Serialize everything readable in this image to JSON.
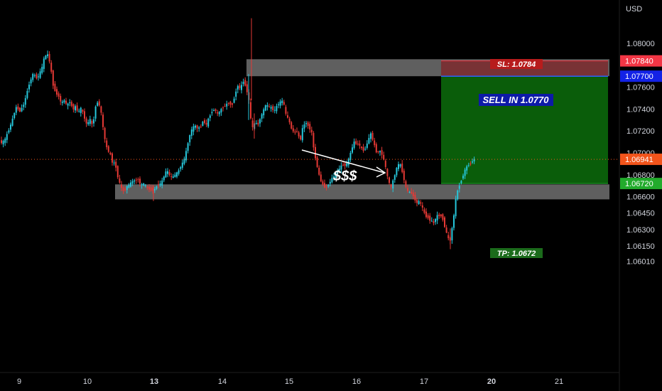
{
  "chart_data": {
    "type": "candlestick",
    "currency_label": "USD",
    "ylim": [
      1.0595,
      1.082
    ],
    "y_ticks": [
      1.08,
      1.076,
      1.074,
      1.072,
      1.07,
      1.068,
      1.066,
      1.0645,
      1.063,
      1.0615,
      1.0601
    ],
    "y_tick_labels": [
      "1.08000",
      "1.07600",
      "1.07400",
      "1.07200",
      "1.07000",
      "1.06800",
      "1.06600",
      "1.06450",
      "1.06300",
      "1.06150",
      "1.06010"
    ],
    "x_labels": [
      {
        "label": "9",
        "bold": false
      },
      {
        "label": "10",
        "bold": false
      },
      {
        "label": "13",
        "bold": true
      },
      {
        "label": "14",
        "bold": false
      },
      {
        "label": "15",
        "bold": false
      },
      {
        "label": "16",
        "bold": false
      },
      {
        "label": "17",
        "bold": false
      },
      {
        "label": "20",
        "bold": true
      },
      {
        "label": "21",
        "bold": false
      }
    ],
    "price_path": [
      [
        0,
        1.0712
      ],
      [
        3,
        1.0709
      ],
      [
        8,
        1.0711
      ],
      [
        12,
        1.0718
      ],
      [
        18,
        1.0728
      ],
      [
        24,
        1.0742
      ],
      [
        30,
        1.0738
      ],
      [
        36,
        1.0746
      ],
      [
        42,
        1.0762
      ],
      [
        48,
        1.0772
      ],
      [
        54,
        1.0768
      ],
      [
        60,
        1.0776
      ],
      [
        64,
        1.0787
      ],
      [
        68,
        1.0791
      ],
      [
        72,
        1.0782
      ],
      [
        76,
        1.0763
      ],
      [
        80,
        1.0755
      ],
      [
        84,
        1.0752
      ],
      [
        88,
        1.0745
      ],
      [
        92,
        1.0748
      ],
      [
        96,
        1.0743
      ],
      [
        100,
        1.0747
      ],
      [
        104,
        1.074
      ],
      [
        108,
        1.0742
      ],
      [
        112,
        1.0737
      ],
      [
        116,
        1.0741
      ],
      [
        120,
        1.0733
      ],
      [
        124,
        1.0725
      ],
      [
        128,
        1.0731
      ],
      [
        132,
        1.0724
      ],
      [
        136,
        1.0742
      ],
      [
        140,
        1.0748
      ],
      [
        144,
        1.0736
      ],
      [
        148,
        1.0716
      ],
      [
        152,
        1.0704
      ],
      [
        156,
        1.07
      ],
      [
        160,
        1.0691
      ],
      [
        164,
        1.069
      ],
      [
        168,
        1.0676
      ],
      [
        172,
        1.0668
      ],
      [
        176,
        1.0665
      ],
      [
        180,
        1.0669
      ],
      [
        184,
        1.0671
      ],
      [
        188,
        1.0674
      ],
      [
        192,
        1.0675
      ],
      [
        196,
        1.0676
      ],
      [
        200,
        1.067
      ],
      [
        204,
        1.0672
      ],
      [
        208,
        1.0668
      ],
      [
        212,
        1.0667
      ],
      [
        216,
        1.0666
      ],
      [
        220,
        1.0667
      ],
      [
        224,
        1.0672
      ],
      [
        228,
        1.0671
      ],
      [
        232,
        1.0678
      ],
      [
        236,
        1.0684
      ],
      [
        240,
        1.068
      ],
      [
        244,
        1.0677
      ],
      [
        248,
        1.068
      ],
      [
        252,
        1.0682
      ],
      [
        256,
        1.0688
      ],
      [
        260,
        1.0692
      ],
      [
        264,
        1.0702
      ],
      [
        268,
        1.0715
      ],
      [
        272,
        1.0722
      ],
      [
        276,
        1.0725
      ],
      [
        280,
        1.0722
      ],
      [
        284,
        1.0724
      ],
      [
        288,
        1.073
      ],
      [
        292,
        1.0725
      ],
      [
        296,
        1.0733
      ],
      [
        300,
        1.0738
      ],
      [
        304,
        1.074
      ],
      [
        308,
        1.0735
      ],
      [
        312,
        1.0739
      ],
      [
        316,
        1.0742
      ],
      [
        320,
        1.0744
      ],
      [
        324,
        1.0746
      ],
      [
        328,
        1.0743
      ],
      [
        332,
        1.0752
      ],
      [
        336,
        1.0762
      ],
      [
        340,
        1.0758
      ],
      [
        344,
        1.0766
      ],
      [
        348,
        1.076
      ],
      [
        352,
        1.0748
      ],
      [
        355,
        1.0728
      ],
      [
        358,
        1.0721
      ],
      [
        361,
        1.073
      ],
      [
        364,
        1.0724
      ],
      [
        368,
        1.0732
      ],
      [
        372,
        1.0738
      ],
      [
        376,
        1.0744
      ],
      [
        380,
        1.0742
      ],
      [
        384,
        1.0741
      ],
      [
        388,
        1.0738
      ],
      [
        392,
        1.0744
      ],
      [
        396,
        1.0746
      ],
      [
        400,
        1.0748
      ],
      [
        404,
        1.0735
      ],
      [
        408,
        1.073
      ],
      [
        412,
        1.0722
      ],
      [
        416,
        1.0718
      ],
      [
        420,
        1.072
      ],
      [
        424,
        1.071
      ],
      [
        428,
        1.0724
      ],
      [
        432,
        1.0728
      ],
      [
        436,
        1.0724
      ],
      [
        440,
        1.072
      ],
      [
        444,
        1.07
      ],
      [
        448,
        1.0688
      ],
      [
        452,
        1.0676
      ],
      [
        456,
        1.0671
      ],
      [
        460,
        1.0668
      ],
      [
        464,
        1.0671
      ],
      [
        468,
        1.0676
      ],
      [
        472,
        1.0679
      ],
      [
        476,
        1.0683
      ],
      [
        480,
        1.0686
      ],
      [
        484,
        1.069
      ],
      [
        488,
        1.0688
      ],
      [
        492,
        1.0693
      ],
      [
        496,
        1.0702
      ],
      [
        500,
        1.071
      ],
      [
        504,
        1.0708
      ],
      [
        508,
        1.0707
      ],
      [
        512,
        1.0702
      ],
      [
        516,
        1.0704
      ],
      [
        520,
        1.0712
      ],
      [
        524,
        1.0718
      ],
      [
        528,
        1.0708
      ],
      [
        532,
        1.07
      ],
      [
        536,
        1.0702
      ],
      [
        540,
        1.0698
      ],
      [
        544,
        1.0688
      ],
      [
        548,
        1.0675
      ],
      [
        552,
        1.0668
      ],
      [
        556,
        1.0677
      ],
      [
        560,
        1.0686
      ],
      [
        564,
        1.0691
      ],
      [
        568,
        1.0683
      ],
      [
        572,
        1.067
      ],
      [
        576,
        1.0664
      ],
      [
        580,
        1.0664
      ],
      [
        584,
        1.066
      ],
      [
        588,
        1.0654
      ],
      [
        592,
        1.0656
      ],
      [
        596,
        1.065
      ],
      [
        600,
        1.0643
      ],
      [
        604,
        1.0641
      ],
      [
        608,
        1.0638
      ],
      [
        612,
        1.0636
      ],
      [
        616,
        1.0642
      ],
      [
        620,
        1.0643
      ],
      [
        624,
        1.0642
      ],
      [
        628,
        1.0632
      ],
      [
        632,
        1.0622
      ],
      [
        635,
        1.0619
      ],
      [
        638,
        1.0631
      ],
      [
        641,
        1.0645
      ],
      [
        644,
        1.0662
      ],
      [
        648,
        1.067
      ],
      [
        652,
        1.0677
      ],
      [
        656,
        1.0684
      ],
      [
        660,
        1.0689
      ],
      [
        664,
        1.069
      ],
      [
        668,
        1.06941
      ]
    ],
    "last_price": 1.06941,
    "zones": [
      {
        "name": "supply-zone",
        "top": 1.07855,
        "bottom": 1.077,
        "from_x": 347,
        "to_x": 858
      },
      {
        "name": "demand-zone",
        "top": 1.06712,
        "bottom": 1.06575,
        "from_x": 162,
        "to_x": 858
      }
    ],
    "position": {
      "type": "short",
      "entry": 1.077,
      "stop_loss": 1.0784,
      "take_profit": 1.0672,
      "sl_label": "SL:  1.0784",
      "entry_label": "SELL IN 1.0770",
      "tp_label": "TP:  1.0672",
      "profit_color": "#0a5d0a",
      "loss_color": "#7d2a2e"
    },
    "price_tags": [
      {
        "value": 1.0784,
        "label": "1.07840",
        "color": "#f23645"
      },
      {
        "value": 1.077,
        "label": "1.07700",
        "color": "#1322e6"
      },
      {
        "value": 1.06941,
        "label": "1.06941",
        "color": "#f2541b"
      },
      {
        "value": 1.0672,
        "label": "1.06720",
        "color": "#22ab2c"
      }
    ],
    "annotations": {
      "liquidity_text": "$$$"
    },
    "colors": {
      "up": "#26c6da",
      "down": "#e53935",
      "zone": "#7a7a7a"
    }
  }
}
